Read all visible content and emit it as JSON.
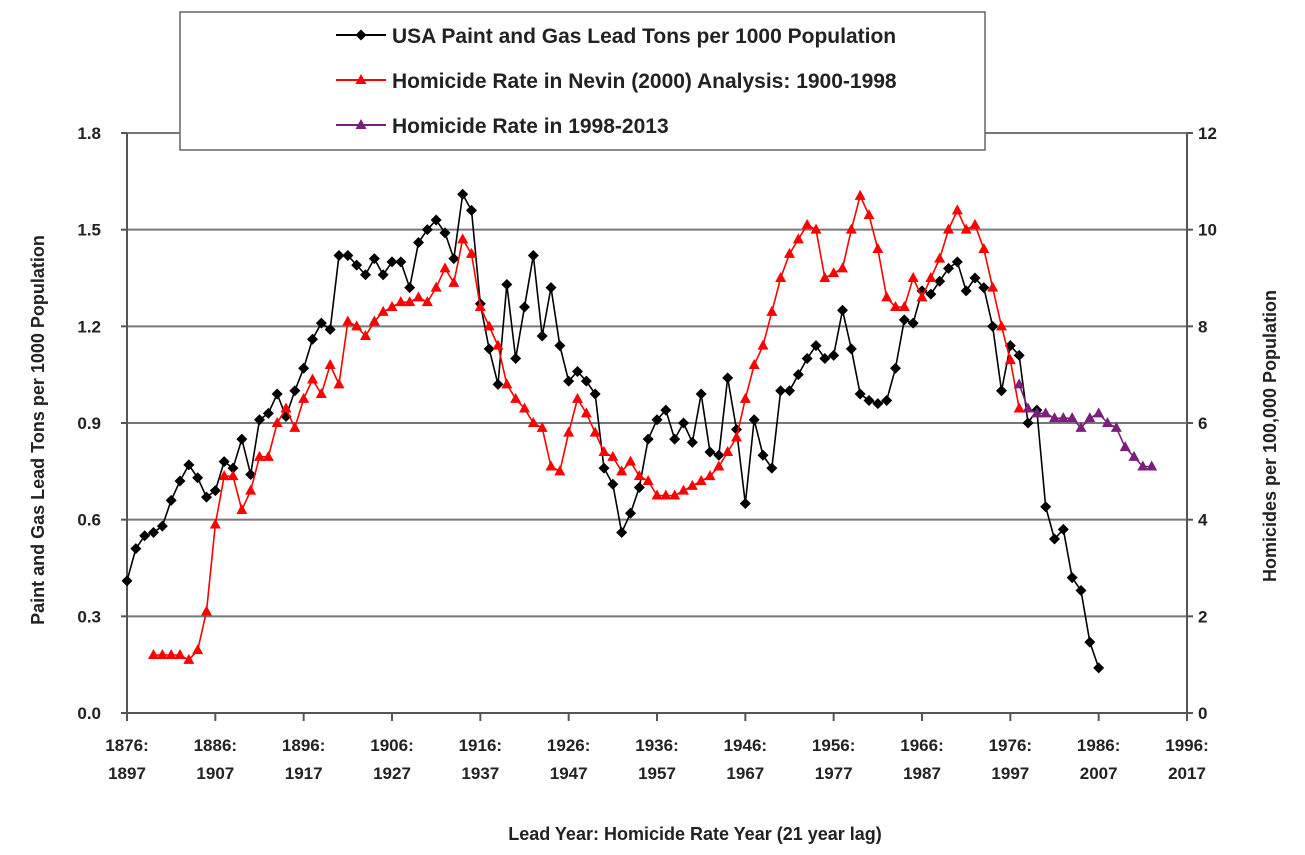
{
  "chart_data": {
    "type": "line",
    "title": "",
    "xlabel": "Lead Year: Homicide Rate Year (21 year lag)",
    "ylabel": "Paint and Gas Lead Tons per 1000 Population",
    "ylabel_right": "Homicides per 100,000 Population",
    "xlim": [
      1876,
      1996
    ],
    "ylim": [
      0,
      1.8
    ],
    "ylim_right": [
      0,
      12
    ],
    "grid": true,
    "legend_position": "top-center",
    "x_ticks": [
      {
        "value": 1876,
        "line1": "1876:",
        "line2": "1897"
      },
      {
        "value": 1886,
        "line1": "1886:",
        "line2": "1907"
      },
      {
        "value": 1896,
        "line1": "1896:",
        "line2": "1917"
      },
      {
        "value": 1906,
        "line1": "1906:",
        "line2": "1927"
      },
      {
        "value": 1916,
        "line1": "1916:",
        "line2": "1937"
      },
      {
        "value": 1926,
        "line1": "1926:",
        "line2": "1947"
      },
      {
        "value": 1936,
        "line1": "1936:",
        "line2": "1957"
      },
      {
        "value": 1946,
        "line1": "1946:",
        "line2": "1967"
      },
      {
        "value": 1956,
        "line1": "1956:",
        "line2": "1977"
      },
      {
        "value": 1966,
        "line1": "1966:",
        "line2": "1987"
      },
      {
        "value": 1976,
        "line1": "1976:",
        "line2": "1997"
      },
      {
        "value": 1986,
        "line1": "1986:",
        "line2": "2007"
      },
      {
        "value": 1996,
        "line1": "1996:",
        "line2": "2017"
      }
    ],
    "y_ticks": [
      "0.0",
      "0.3",
      "0.6",
      "0.9",
      "1.2",
      "1.5",
      "1.8"
    ],
    "y_ticks_right": [
      "0",
      "2",
      "4",
      "6",
      "8",
      "10",
      "12"
    ],
    "series": [
      {
        "name": "USA Paint and Gas Lead Tons per 1000 Population",
        "axis": "left",
        "color": "#000000",
        "marker": "diamond",
        "x_start": 1876,
        "values": [
          0.41,
          0.51,
          0.55,
          0.56,
          0.58,
          0.66,
          0.72,
          0.77,
          0.73,
          0.67,
          0.69,
          0.78,
          0.76,
          0.85,
          0.74,
          0.91,
          0.93,
          0.99,
          0.92,
          1.0,
          1.07,
          1.16,
          1.21,
          1.19,
          1.42,
          1.42,
          1.39,
          1.36,
          1.41,
          1.36,
          1.4,
          1.4,
          1.32,
          1.46,
          1.5,
          1.53,
          1.49,
          1.41,
          1.61,
          1.56,
          1.27,
          1.13,
          1.02,
          1.33,
          1.1,
          1.26,
          1.42,
          1.17,
          1.32,
          1.14,
          1.03,
          1.06,
          1.03,
          0.99,
          0.76,
          0.71,
          0.56,
          0.62,
          0.7,
          0.85,
          0.91,
          0.94,
          0.85,
          0.9,
          0.84,
          0.99,
          0.81,
          0.8,
          1.04,
          0.88,
          0.65,
          0.91,
          0.8,
          0.76,
          1.0,
          1.0,
          1.05,
          1.1,
          1.14,
          1.1,
          1.11,
          1.25,
          1.13,
          0.99,
          0.97,
          0.96,
          0.97,
          1.07,
          1.22,
          1.21,
          1.31,
          1.3,
          1.34,
          1.38,
          1.4,
          1.31,
          1.35,
          1.32,
          1.2,
          1.0,
          1.14,
          1.11,
          0.9,
          0.94,
          0.64,
          0.54,
          0.57,
          0.42,
          0.38,
          0.22,
          0.14
        ]
      },
      {
        "name": "Homicide Rate in Nevin (2000) Analysis: 1900-1998",
        "axis": "right",
        "color": "#ff0000",
        "marker": "triangle",
        "x_start": 1879,
        "values": [
          1.2,
          1.2,
          1.2,
          1.2,
          1.1,
          1.3,
          2.1,
          3.9,
          4.9,
          4.9,
          4.2,
          4.6,
          5.3,
          5.3,
          6.0,
          6.3,
          5.9,
          6.5,
          6.9,
          6.6,
          7.2,
          6.8,
          8.1,
          8.0,
          7.8,
          8.1,
          8.3,
          8.4,
          8.5,
          8.5,
          8.6,
          8.5,
          8.8,
          9.2,
          8.9,
          9.8,
          9.5,
          8.4,
          8.0,
          7.6,
          6.8,
          6.5,
          6.3,
          6.0,
          5.9,
          5.1,
          5.0,
          5.8,
          6.5,
          6.2,
          5.8,
          5.4,
          5.3,
          5.0,
          5.2,
          4.9,
          4.8,
          4.5,
          4.5,
          4.5,
          4.6,
          4.7,
          4.8,
          4.9,
          5.1,
          5.4,
          5.7,
          6.5,
          7.2,
          7.6,
          8.3,
          9.0,
          9.5,
          9.8,
          10.1,
          10.0,
          9.0,
          9.1,
          9.2,
          10.0,
          10.7,
          10.3,
          9.6,
          8.6,
          8.4,
          8.4,
          9.0,
          8.6,
          9.0,
          9.4,
          10.0,
          10.4,
          10.0,
          10.1,
          9.6,
          8.8,
          8.0,
          7.3,
          6.3
        ]
      },
      {
        "name": "Homicide Rate in 1998-2013",
        "axis": "right",
        "color": "#7a1f7a",
        "marker": "triangle",
        "x_start": 1977,
        "values": [
          6.8,
          6.3,
          6.2,
          6.2,
          6.1,
          6.1,
          6.1,
          5.9,
          6.1,
          6.2,
          6.0,
          5.9,
          5.5,
          5.3,
          5.1,
          5.1
        ]
      }
    ]
  }
}
